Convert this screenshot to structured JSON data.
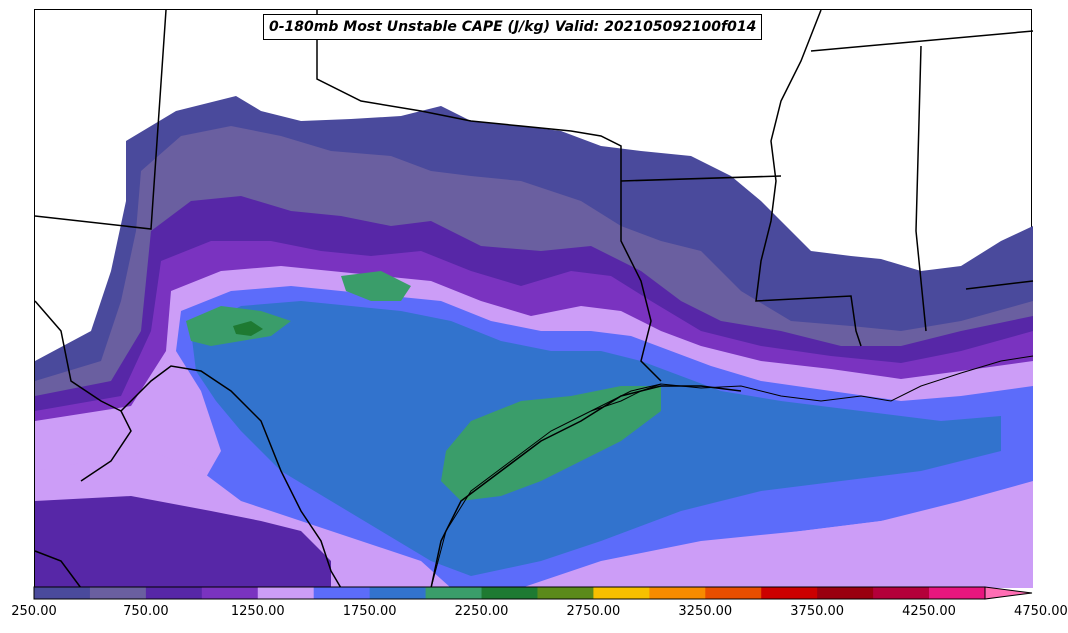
{
  "title": "0-180mb Most Unstable CAPE (J/kg) Valid: 202105092100f014",
  "colorbar": {
    "min": 250,
    "step": 250,
    "extend": "max",
    "tick_labels": [
      "250.00",
      "750.00",
      "1250.00",
      "1750.00",
      "2250.00",
      "2750.00",
      "3250.00",
      "3750.00",
      "4250.00",
      "4750.00"
    ],
    "colors": [
      "#4a4a9c",
      "#6a5fa0",
      "#5727a7",
      "#7a33c0",
      "#cc9df7",
      "#5c6cfa",
      "#3273cd",
      "#3a9d6a",
      "#1e7a32",
      "#5b8a1a",
      "#f7c000",
      "#f78b00",
      "#e84e00",
      "#cc0000",
      "#9a0010",
      "#b4003a",
      "#e8167e",
      "#ff6eb4"
    ]
  },
  "legend_icon": "colorbar-extend-arrow"
}
